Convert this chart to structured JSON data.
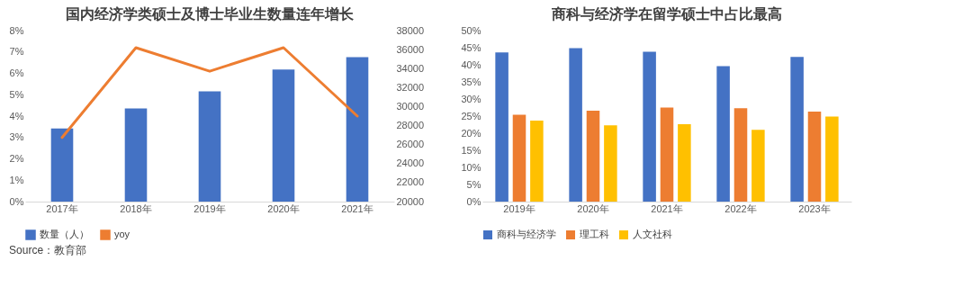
{
  "chart_data": [
    {
      "type": "bar",
      "title": "国内经济学类硕士及博士毕业生数量连年增长",
      "categories": [
        "2017年",
        "2018年",
        "2019年",
        "2020年",
        "2021年"
      ],
      "series": [
        {
          "name": "数量（人）",
          "color": "#4472c4",
          "axis": "y2",
          "values": [
            27700,
            29800,
            31600,
            33900,
            35200
          ]
        },
        {
          "name": "yoy",
          "type": "line",
          "color": "#ed7d31",
          "values": [
            3.0,
            7.2,
            6.1,
            7.2,
            4.0
          ]
        }
      ],
      "ylim": [
        0,
        8
      ],
      "yticks": [
        {
          "value": 0,
          "label": "0%"
        },
        {
          "value": 1,
          "label": "1%"
        },
        {
          "value": 2,
          "label": "2%"
        },
        {
          "value": 3,
          "label": "3%"
        },
        {
          "value": 4,
          "label": "4%"
        },
        {
          "value": 5,
          "label": "5%"
        },
        {
          "value": 6,
          "label": "6%"
        },
        {
          "value": 7,
          "label": "7%"
        },
        {
          "value": 8,
          "label": "8%"
        }
      ],
      "y2lim": [
        20000,
        38000
      ],
      "y2ticks": [
        20000,
        22000,
        24000,
        26000,
        28000,
        30000,
        32000,
        34000,
        36000,
        38000
      ],
      "legend": "bottom",
      "annotations": [
        "Source：教育部"
      ]
    },
    {
      "type": "bar",
      "title": "商科与经济学在留学硕士中占比最高",
      "categories": [
        "2019年",
        "2020年",
        "2021年",
        "2022年",
        "2023年"
      ],
      "series": [
        {
          "name": "商科与经济学",
          "color": "#4472c4",
          "values": [
            43.6,
            44.9,
            43.8,
            39.6,
            42.3
          ]
        },
        {
          "name": "理工科",
          "color": "#ed7d31",
          "values": [
            25.4,
            26.6,
            27.5,
            27.3,
            26.3
          ]
        },
        {
          "name": "人文社科",
          "color": "#ffc000",
          "values": [
            23.7,
            22.3,
            22.6,
            21.0,
            24.9
          ]
        }
      ],
      "ylim": [
        0,
        50
      ],
      "yticks": [
        {
          "value": 0,
          "label": "0%"
        },
        {
          "value": 5,
          "label": "5%"
        },
        {
          "value": 10,
          "label": "10%"
        },
        {
          "value": 15,
          "label": "15%"
        },
        {
          "value": 20,
          "label": "20%"
        },
        {
          "value": 25,
          "label": "25%"
        },
        {
          "value": 30,
          "label": "30%"
        },
        {
          "value": 35,
          "label": "35%"
        },
        {
          "value": 40,
          "label": "40%"
        },
        {
          "value": 45,
          "label": "45%"
        },
        {
          "value": 50,
          "label": "50%"
        }
      ],
      "legend": "bottom"
    }
  ]
}
